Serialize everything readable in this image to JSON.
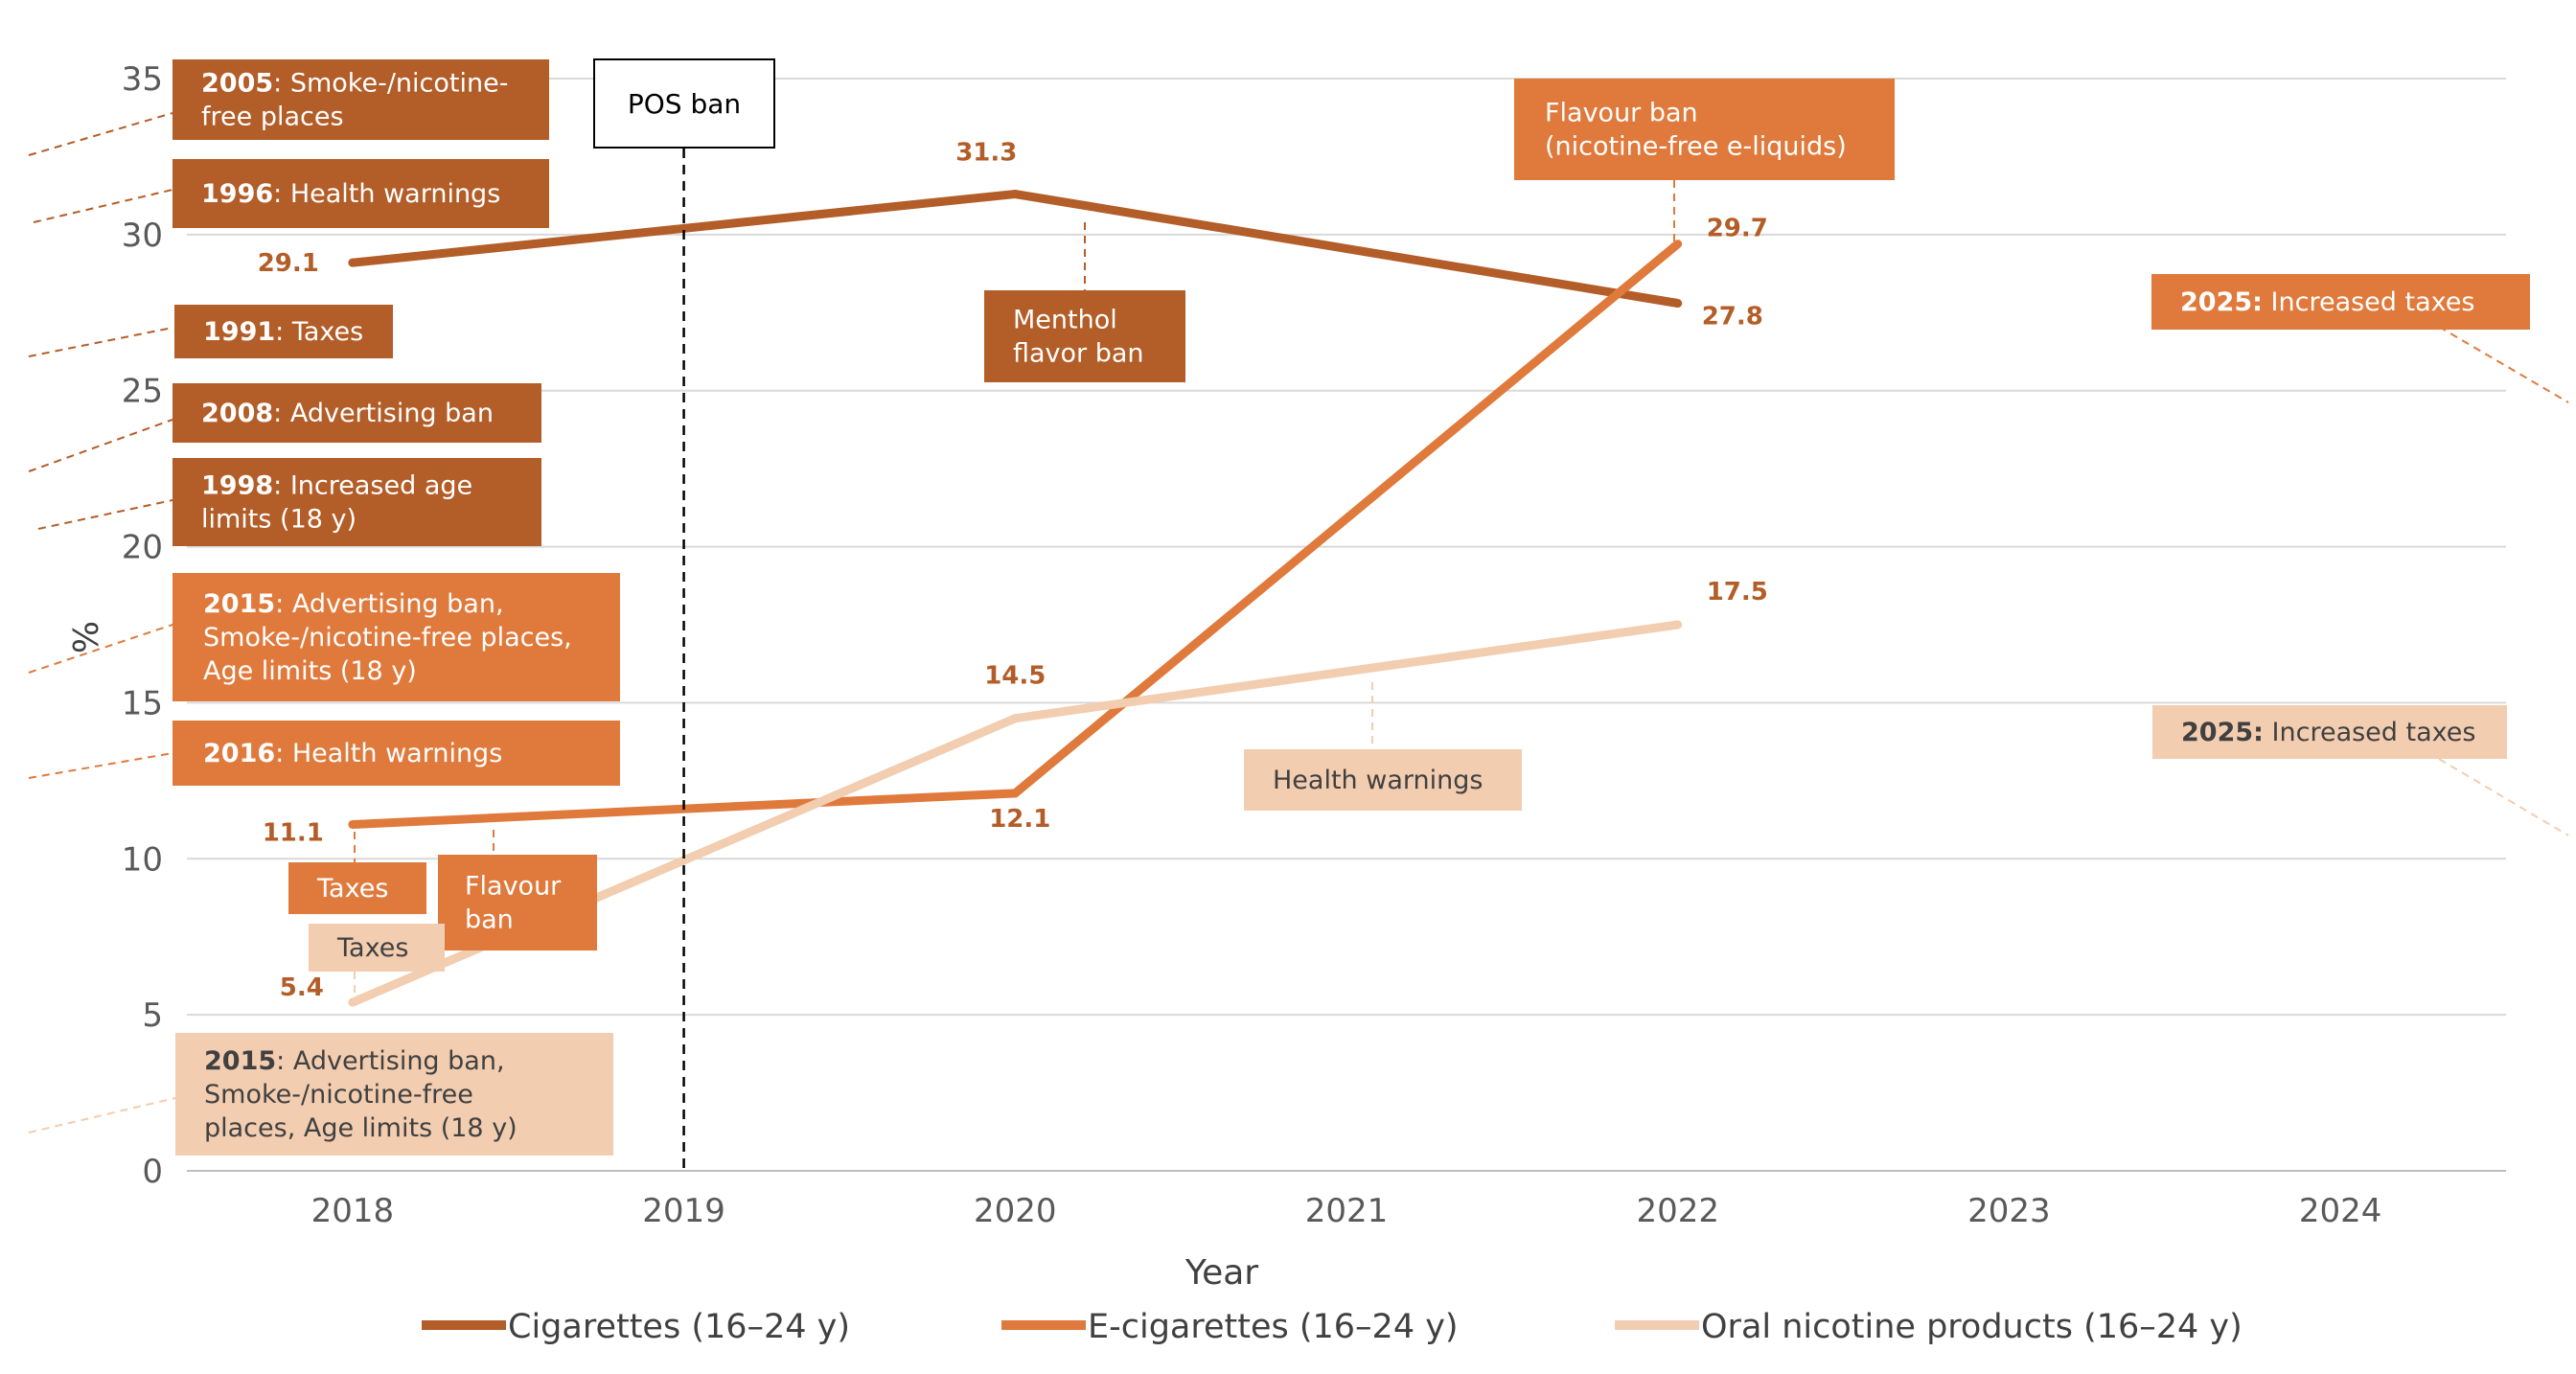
{
  "chart_data": {
    "type": "line",
    "title": "",
    "xlabel": "Year",
    "ylabel": "%",
    "x": [
      2018,
      2019,
      2020,
      2021,
      2022,
      2023,
      2024
    ],
    "ylim": [
      0,
      35
    ],
    "yticks": [
      0,
      5,
      10,
      15,
      20,
      25,
      30,
      35
    ],
    "grid": true,
    "legend_position": "bottom",
    "series": [
      {
        "name": "Cigarettes (16–24 y)",
        "color": "#b35d28",
        "points": [
          {
            "x": 2018,
            "y": 29.1
          },
          {
            "x": 2020,
            "y": 31.3
          },
          {
            "x": 2022,
            "y": 27.8
          }
        ],
        "labels": [
          "29.1",
          "31.3",
          "27.8"
        ]
      },
      {
        "name": "E-cigarettes (16–24 y)",
        "color": "#e07a3c",
        "points": [
          {
            "x": 2018,
            "y": 11.1
          },
          {
            "x": 2020,
            "y": 12.1
          },
          {
            "x": 2022,
            "y": 29.7
          }
        ],
        "labels": [
          "11.1",
          "12.1",
          "29.7"
        ]
      },
      {
        "name": "Oral nicotine products (16–24 y)",
        "color": "#f2cdb0",
        "points": [
          {
            "x": 2018,
            "y": 5.4
          },
          {
            "x": 2020,
            "y": 14.5
          },
          {
            "x": 2022,
            "y": 17.5
          }
        ],
        "labels": [
          "5.4",
          "14.5",
          "17.5"
        ]
      }
    ],
    "vertical_marker": {
      "x": 2019,
      "label": "POS ban"
    },
    "annotations": [
      {
        "year": "2005",
        "text": "Smoke-/nicotine-free places",
        "series": "cigarettes",
        "lines": [
          {
            "b": "2005",
            "t": ": Smoke-/nicotine-"
          },
          {
            "b": "",
            "t": "free places"
          }
        ]
      },
      {
        "year": "1996",
        "text": "Health warnings",
        "series": "cigarettes",
        "lines": [
          {
            "b": "1996",
            "t": ": Health warnings"
          }
        ]
      },
      {
        "year": "1991",
        "text": "Taxes",
        "series": "cigarettes",
        "lines": [
          {
            "b": "1991",
            "t": ": Taxes"
          }
        ]
      },
      {
        "year": "2008",
        "text": "Advertising ban",
        "series": "cigarettes",
        "lines": [
          {
            "b": "2008",
            "t": ": Advertising ban"
          }
        ]
      },
      {
        "year": "1998",
        "text": "Increased age limits (18 y)",
        "series": "cigarettes",
        "lines": [
          {
            "b": "1998",
            "t": ": Increased age"
          },
          {
            "b": "",
            "t": "limits (18 y)"
          }
        ]
      },
      {
        "year": "2015",
        "text": "Advertising ban, Smoke-/nicotine-free places, Age limits (18 y)",
        "series": "e-cigarettes",
        "lines": [
          {
            "b": "2015",
            "t": ": Advertising ban,"
          },
          {
            "b": "",
            "t": "Smoke-/nicotine-free places,"
          },
          {
            "b": "",
            "t": "Age limits (18 y)"
          }
        ]
      },
      {
        "year": "2016",
        "text": "Health warnings",
        "series": "e-cigarettes",
        "lines": [
          {
            "b": "2016",
            "t": ": Health warnings"
          }
        ]
      },
      {
        "year": "2015",
        "text": "Advertising ban, Smoke-/nicotine-free places, Age limits (18 y)",
        "series": "oral",
        "lines": [
          {
            "b": "2015",
            "t": ": Advertising ban,"
          },
          {
            "b": "",
            "t": "Smoke-/nicotine-free"
          },
          {
            "b": "",
            "t": "places, Age limits (18 y)"
          }
        ]
      },
      {
        "year": "",
        "text": "Taxes",
        "series": "e-cigarettes",
        "lines": [
          {
            "b": "",
            "t": "Taxes"
          }
        ]
      },
      {
        "year": "",
        "text": "Flavour ban",
        "series": "e-cigarettes",
        "lines": [
          {
            "b": "",
            "t": "Flavour"
          },
          {
            "b": "",
            "t": "ban"
          }
        ]
      },
      {
        "year": "",
        "text": "Taxes",
        "series": "oral",
        "lines": [
          {
            "b": "",
            "t": "Taxes"
          }
        ]
      },
      {
        "year": "",
        "text": "Menthol flavor ban",
        "series": "cigarettes",
        "lines": [
          {
            "b": "",
            "t": "Menthol"
          },
          {
            "b": "",
            "t": "flavor ban"
          }
        ]
      },
      {
        "year": "",
        "text": "Flavour ban (nicotine-free e-liquids)",
        "series": "e-cigarettes",
        "lines": [
          {
            "b": "",
            "t": "Flavour ban"
          },
          {
            "b": "",
            "t": "(nicotine-free e-liquids)"
          }
        ]
      },
      {
        "year": "",
        "text": "Health warnings",
        "series": "oral",
        "lines": [
          {
            "b": "",
            "t": "Health warnings"
          }
        ]
      },
      {
        "year": "2025",
        "text": "Increased taxes",
        "series": "e-cigarettes",
        "lines": [
          {
            "b": "2025:",
            "t": " Increased taxes"
          }
        ]
      },
      {
        "year": "2025",
        "text": "Increased taxes",
        "series": "oral",
        "lines": [
          {
            "b": "2025:",
            "t": " Increased taxes"
          }
        ]
      }
    ]
  }
}
